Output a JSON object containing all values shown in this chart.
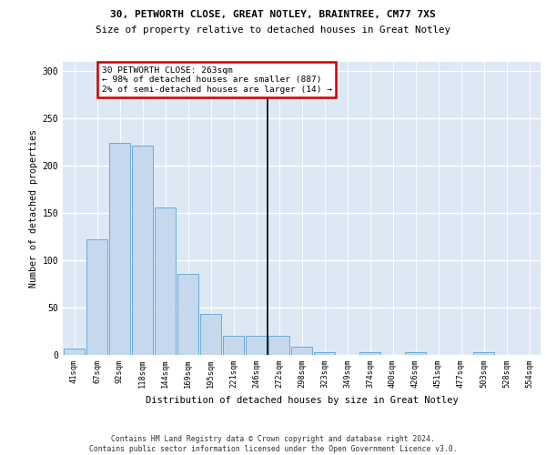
{
  "title1": "30, PETWORTH CLOSE, GREAT NOTLEY, BRAINTREE, CM77 7XS",
  "title2": "Size of property relative to detached houses in Great Notley",
  "xlabel": "Distribution of detached houses by size in Great Notley",
  "ylabel": "Number of detached properties",
  "bar_color": "#c5d8ee",
  "bar_edge_color": "#6aacd6",
  "categories": [
    "41sqm",
    "67sqm",
    "92sqm",
    "118sqm",
    "144sqm",
    "169sqm",
    "195sqm",
    "221sqm",
    "246sqm",
    "272sqm",
    "298sqm",
    "323sqm",
    "349sqm",
    "374sqm",
    "400sqm",
    "426sqm",
    "451sqm",
    "477sqm",
    "503sqm",
    "528sqm",
    "554sqm"
  ],
  "values": [
    7,
    122,
    224,
    221,
    156,
    86,
    43,
    20,
    20,
    20,
    9,
    3,
    0,
    3,
    0,
    3,
    0,
    0,
    3,
    0,
    0
  ],
  "vline_color": "#000000",
  "annotation_line1": "30 PETWORTH CLOSE: 263sqm",
  "annotation_line2": "← 98% of detached houses are smaller (887)",
  "annotation_line3": "2% of semi-detached houses are larger (14) →",
  "annotation_edge_color": "#cc0000",
  "ylim": [
    0,
    310
  ],
  "yticks": [
    0,
    50,
    100,
    150,
    200,
    250,
    300
  ],
  "footer1": "Contains HM Land Registry data © Crown copyright and database right 2024.",
  "footer2": "Contains public sector information licensed under the Open Government Licence v3.0.",
  "bg_color": "#dde8f5"
}
